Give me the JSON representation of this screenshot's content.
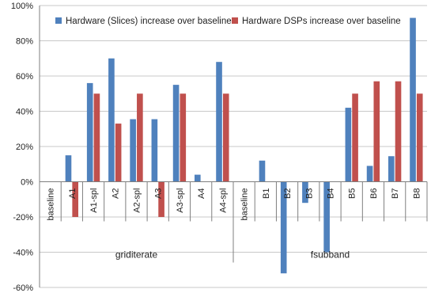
{
  "chart_data": {
    "type": "bar",
    "title": "",
    "xlabel": "",
    "ylabel": "",
    "ylim": [
      -0.6,
      1.0
    ],
    "yticks": [
      -0.6,
      -0.4,
      -0.2,
      0,
      0.2,
      0.4,
      0.6,
      0.8,
      1.0
    ],
    "ytick_labels": [
      "-60%",
      "-40%",
      "-20%",
      "0%",
      "20%",
      "40%",
      "60%",
      "80%",
      "100%"
    ],
    "grid": true,
    "legend_position": "top-right",
    "categories": [
      "baseline",
      "A1",
      "A1-spl",
      "A2",
      "A2-spl",
      "A3",
      "A3-spl",
      "A4",
      "A4-spl",
      "baseline",
      "B1",
      "B2",
      "B3",
      "B4",
      "B5",
      "B6",
      "B7",
      "B8"
    ],
    "groups": [
      {
        "label": "griditerate",
        "count": 9
      },
      {
        "label": "fsubband",
        "count": 9
      }
    ],
    "series": [
      {
        "name": "Hardware (Slices) increase over baseline",
        "color": "#4f81bd",
        "values": [
          0,
          0.15,
          0.56,
          0.7,
          0.355,
          0.355,
          0.55,
          0.04,
          0.68,
          0,
          0.12,
          -0.52,
          -0.12,
          -0.4,
          0.42,
          0.09,
          0.145,
          0.93
        ]
      },
      {
        "name": "Hardware DSPs increase over baseline",
        "color": "#c0504d",
        "values": [
          0,
          -0.2,
          0.5,
          0.33,
          0.5,
          -0.2,
          0.5,
          0,
          0.5,
          0,
          0,
          0,
          0,
          0,
          0.5,
          0.57,
          0.57,
          0.5
        ]
      }
    ]
  }
}
